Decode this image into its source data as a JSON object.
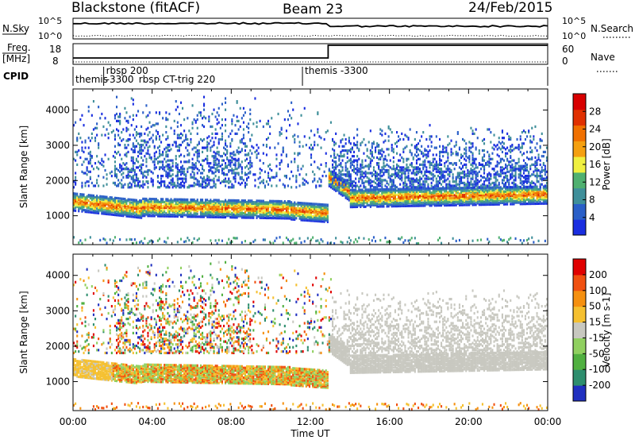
{
  "header": {
    "radar": "Blackstone (fitACF)",
    "beam": "Beam 23",
    "date": "24/Feb/2015"
  },
  "sky_panel": {
    "left_label": "N.Sky",
    "right_label": "N.Search",
    "left_ticks": [
      "10^5",
      "10^0"
    ],
    "right_ticks": [
      "10^5",
      "10^0"
    ]
  },
  "freq_panel": {
    "left_label_top": "Freq.",
    "left_label_bottom": "[MHz]",
    "left_ticks": [
      "18",
      "8"
    ],
    "right_label": "Nave",
    "right_ticks": [
      "60",
      "0"
    ]
  },
  "cpid": {
    "label": "CPID",
    "entries": [
      {
        "time_h": 0.0,
        "row": 1,
        "text": "themis"
      },
      {
        "time_h": 1.55,
        "row": 0,
        "text": "rbsp 200"
      },
      {
        "time_h": 1.55,
        "row": 1,
        "text": "-3300"
      },
      {
        "time_h": 3.2,
        "row": 1,
        "text": "rbsp CT-trig 220"
      },
      {
        "time_h": 11.6,
        "row": 0,
        "text": "themis -3300"
      }
    ],
    "separators_h": [
      1.55,
      11.6
    ]
  },
  "chart_data": [
    {
      "type": "heatmap",
      "name": "power",
      "ylabel": "Slant Range [km]",
      "ylim": [
        180,
        4600
      ],
      "yticks": [
        1000,
        2000,
        3000,
        4000
      ],
      "xlim_h": [
        0,
        24
      ],
      "colorbar": {
        "label": "Power [dB]",
        "ticks": [
          "4",
          "8",
          "12",
          "16",
          "20",
          "24",
          "28"
        ],
        "colors": [
          "#1a2ee0",
          "#2a5fc8",
          "#3f8f9a",
          "#4fb070",
          "#f0f040",
          "#f5a010",
          "#f07000",
          "#e03000",
          "#d80000"
        ]
      }
    },
    {
      "type": "heatmap",
      "name": "velocity",
      "ylabel": "Slant Range [km]",
      "ylim": [
        180,
        4600
      ],
      "yticks": [
        1000,
        2000,
        3000,
        4000
      ],
      "xlim_h": [
        0,
        24
      ],
      "colorbar": {
        "label": "Velocity [m s-1]",
        "ticks": [
          "200",
          "100",
          "50",
          "15",
          "-15",
          "-50",
          "-100",
          "-200"
        ],
        "colors": [
          "#2030c0",
          "#2e8e6e",
          "#50b040",
          "#90d060",
          "#c8c8c0",
          "#f5c030",
          "#f59010",
          "#f05010",
          "#e00000"
        ]
      }
    }
  ],
  "time_axis": {
    "label": "Time UT",
    "ticks": [
      "00:00",
      "04:00",
      "08:00",
      "12:00",
      "16:00",
      "20:00",
      "00:00"
    ]
  }
}
